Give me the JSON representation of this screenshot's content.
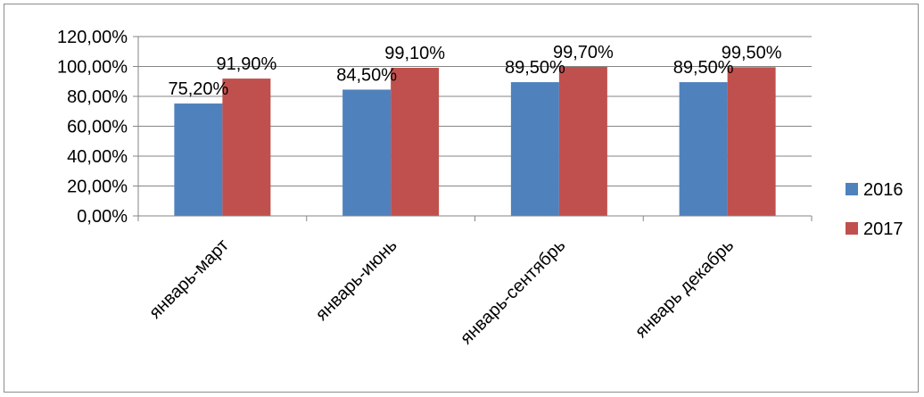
{
  "chart_data": {
    "type": "bar",
    "categories": [
      "январь-март",
      "январь-июнь",
      "январь-сентябрь",
      "январь декабрь"
    ],
    "series": [
      {
        "name": "2016",
        "values": [
          75.2,
          84.5,
          89.5,
          89.5
        ],
        "labels": [
          "75,20%",
          "84,50%",
          "89,50%",
          "89,50%"
        ],
        "color": "#4f81bd"
      },
      {
        "name": "2017",
        "values": [
          91.9,
          99.1,
          99.7,
          99.5
        ],
        "labels": [
          "91,90%",
          "99,10%",
          "99,70%",
          "99,50%"
        ],
        "color": "#c0504d"
      }
    ],
    "ylim": [
      0,
      120
    ],
    "yticks": [
      0,
      20,
      40,
      60,
      80,
      100,
      120
    ],
    "ytick_labels": [
      "0,00%",
      "20,00%",
      "40,00%",
      "60,00%",
      "80,00%",
      "100,00%",
      "120,00%"
    ],
    "grid": true,
    "legend_position": "right",
    "title": "",
    "xlabel": "",
    "ylabel": ""
  }
}
